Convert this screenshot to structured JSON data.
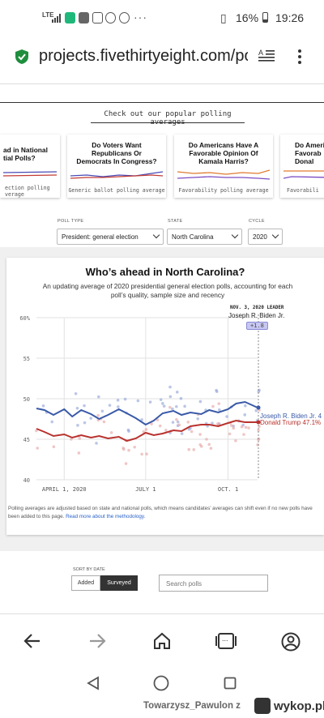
{
  "status_bar": {
    "network": "LTE",
    "overflow": "···",
    "battery": "16%",
    "time": "19:26",
    "icons": [
      "signal-icon",
      "grammarly-icon",
      "app-icon",
      "instagram-icon",
      "whatsapp-icon",
      "messenger-icon",
      "vibrate-icon",
      "battery-icon"
    ]
  },
  "browser": {
    "url": "projects.fivethirtyeight.com/po",
    "icons": [
      "secure-shield-icon",
      "reader-mode-icon",
      "more-menu-icon"
    ]
  },
  "popular": {
    "heading": "Check out our popular polling averages",
    "cards": [
      {
        "title": "ad in National\ntial Polls?",
        "footer": "ection polling\nverage"
      },
      {
        "title": "Do Voters Want\nRepublicans Or\nDemocrats In Congress?",
        "footer": "Generic ballot polling average"
      },
      {
        "title": "Do Americans Have A\nFavorable Opinion Of\nKamala Harris?",
        "footer": "Favorability polling average"
      },
      {
        "title": "Do Ameri\nFavorab\nDonal",
        "footer": "Favorabili"
      }
    ]
  },
  "filters": {
    "poll_type_label": "POLL TYPE",
    "poll_type_value": "President: general election",
    "state_label": "STATE",
    "state_value": "North Carolina",
    "cycle_label": "CYCLE",
    "cycle_value": "2020"
  },
  "chart_card": {
    "title": "Who’s ahead in North Carolina?",
    "subtitle": "An updating average of 2020 presidential general election polls, accounting for each poll’s quality, sample size and recency",
    "leader_label": "NOV. 3, 2020 LEADER",
    "leader_name": "Joseph R. Biden Jr.",
    "leader_margin": "+1.8",
    "note": "Polling averages are adjusted based on state and national polls, which means candidates’ averages can shift even if no new polls have been added to this page.",
    "note_link": "Read more about the methodology."
  },
  "chart_data": {
    "type": "line",
    "title": "Who’s ahead in North Carolina?",
    "xlabel": "",
    "ylabel": "",
    "ylim": [
      40,
      60
    ],
    "yticks": [
      "60%",
      "55",
      "50",
      "45",
      "40"
    ],
    "xticks": [
      "APRIL 1, 2020",
      "JULY 1",
      "OCT. 1"
    ],
    "grid": true,
    "series": [
      {
        "name": "Joseph R. Biden Jr. 4",
        "color": "#3a5aa8",
        "x": [
          "2020-03-01",
          "2020-03-10",
          "2020-03-20",
          "2020-04-01",
          "2020-04-10",
          "2020-04-20",
          "2020-05-01",
          "2020-05-10",
          "2020-05-20",
          "2020-06-01",
          "2020-06-10",
          "2020-06-20",
          "2020-07-01",
          "2020-07-10",
          "2020-07-20",
          "2020-08-01",
          "2020-08-10",
          "2020-08-20",
          "2020-09-01",
          "2020-09-10",
          "2020-09-20",
          "2020-10-01",
          "2020-10-10",
          "2020-10-20",
          "2020-11-03"
        ],
        "values": [
          48.8,
          48.6,
          48.0,
          48.7,
          47.8,
          48.6,
          48.1,
          47.5,
          48.0,
          48.7,
          48.2,
          47.6,
          46.8,
          47.3,
          48.2,
          48.5,
          48.0,
          48.3,
          48.1,
          48.6,
          48.3,
          48.7,
          49.4,
          49.6,
          48.9
        ]
      },
      {
        "name": "Donald Trump 47.1%",
        "color": "#b8322e",
        "x": [
          "2020-03-01",
          "2020-03-10",
          "2020-03-20",
          "2020-04-01",
          "2020-04-10",
          "2020-04-20",
          "2020-05-01",
          "2020-05-10",
          "2020-05-20",
          "2020-06-01",
          "2020-06-10",
          "2020-06-20",
          "2020-07-01",
          "2020-07-10",
          "2020-07-20",
          "2020-08-01",
          "2020-08-10",
          "2020-08-20",
          "2020-09-01",
          "2020-09-10",
          "2020-09-20",
          "2020-10-01",
          "2020-10-10",
          "2020-10-20",
          "2020-11-03"
        ],
        "values": [
          46.3,
          45.9,
          45.4,
          45.6,
          45.2,
          45.5,
          45.2,
          45.4,
          45.1,
          45.3,
          44.8,
          45.1,
          45.8,
          45.5,
          45.7,
          46.1,
          46.0,
          46.6,
          46.8,
          46.8,
          46.6,
          47.0,
          47.3,
          47.1,
          47.1
        ]
      }
    ],
    "colors": {
      "biden": "#3a5aa8",
      "trump": "#b8322e",
      "biden_dots": "#8ea0d6",
      "trump_dots": "#e6a0a0"
    }
  },
  "sort": {
    "label": "SORT BY DATE",
    "added": "Added",
    "surveyed": "Surveyed",
    "search_placeholder": "Search polls"
  },
  "browser_nav": {
    "tab_count": "...",
    "icons": [
      "back-icon",
      "forward-icon",
      "home-icon",
      "tabs-icon",
      "account-icon"
    ]
  },
  "system_nav": {
    "icons": [
      "back-triangle-icon",
      "home-circle-icon",
      "recents-square-icon"
    ]
  },
  "watermark": {
    "user": "Towarzysz_Pawulon z",
    "site": "wykop.pl"
  }
}
